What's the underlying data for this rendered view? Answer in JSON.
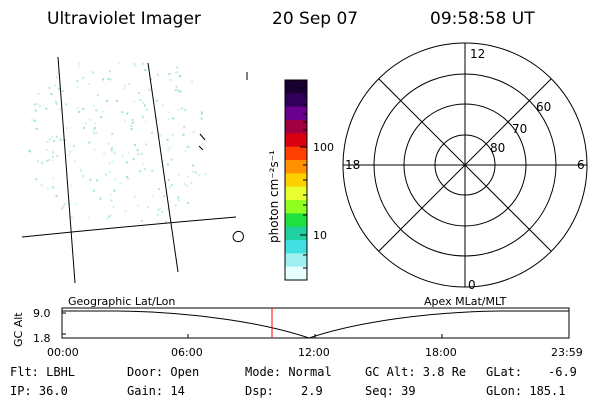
{
  "header": {
    "title": "Ultraviolet Imager",
    "date": "20 Sep 07",
    "time": "09:58:58 UT"
  },
  "colorbar": {
    "unit_label": "photon cm⁻²s⁻¹",
    "ticks": [
      "100",
      "10"
    ],
    "colors": [
      "#1a0030",
      "#30005a",
      "#6a0090",
      "#a00040",
      "#d80010",
      "#ff4000",
      "#ff9000",
      "#ffd000",
      "#e8ff30",
      "#90ff20",
      "#20e040",
      "#20d0a0",
      "#40e0e0",
      "#a0f0f0",
      "#e8ffff"
    ]
  },
  "polar": {
    "mlt_labels": [
      "12",
      "6",
      "18",
      "0"
    ],
    "lat_labels": [
      "60",
      "70",
      "80"
    ]
  },
  "orbit": {
    "left_title": "Geographic Lat/Lon",
    "right_title": "Apex  MLat/MLT",
    "ylabel": "GC Alt",
    "y_ticks": [
      "9.0",
      "1.8"
    ],
    "x_ticks": [
      "00:00",
      "06:00",
      "12:00",
      "18:00",
      "23:59"
    ],
    "marker_color": "#ff0000"
  },
  "status": {
    "flt": "Flt: LBHL",
    "ip": "IP: 36.0",
    "door": "Door: Open",
    "gain": "Gain: 14",
    "mode": "Mode: Normal",
    "dsp_label": "Dsp:",
    "dsp_value": "2.9",
    "gc_alt": "GC Alt: 3.8 Re",
    "seq": "Seq: 39",
    "glat_label": "GLat:",
    "glat_value": "-6.9",
    "glon": "GLon: 185.1"
  }
}
